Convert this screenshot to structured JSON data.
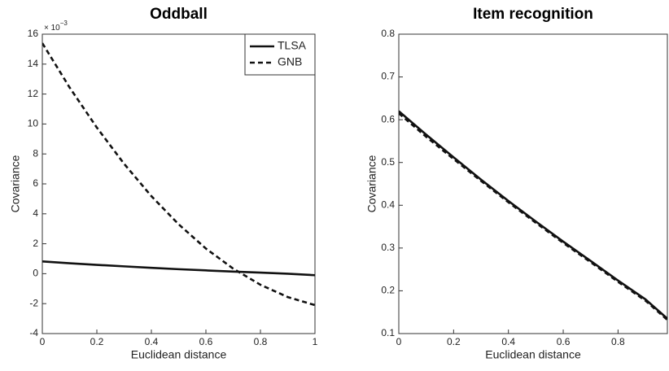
{
  "chart_data": [
    {
      "type": "line",
      "title": "Oddball",
      "xlabel": "Euclidean distance",
      "ylabel": "Covariance",
      "multiplier": {
        "base": "× 10",
        "exponent": "−3"
      },
      "x": [
        0,
        0.1,
        0.2,
        0.3,
        0.4,
        0.5,
        0.6,
        0.7,
        0.8,
        0.9,
        1.0
      ],
      "series": [
        {
          "name": "TLSA",
          "color": "#111111",
          "linestyle": "solid",
          "values": [
            0.82,
            0.7,
            0.59,
            0.49,
            0.39,
            0.3,
            0.22,
            0.14,
            0.07,
            0.0,
            -0.1
          ]
        },
        {
          "name": "GNB",
          "color": "#111111",
          "linestyle": "dashed",
          "values": [
            15.4,
            12.44,
            9.76,
            7.34,
            5.18,
            3.3,
            1.68,
            0.34,
            -0.74,
            -1.56,
            -2.1
          ]
        }
      ],
      "xlim": [
        0,
        1
      ],
      "xticks": [
        0,
        0.2,
        0.4,
        0.6,
        0.8,
        1
      ],
      "ylim": [
        -4,
        16
      ],
      "yticks": [
        -4,
        -2,
        0,
        2,
        4,
        6,
        8,
        10,
        12,
        14,
        16
      ],
      "legend": "upper right"
    },
    {
      "type": "line",
      "title": "Item recognition",
      "xlabel": "Euclidean distance",
      "ylabel": "Covariance",
      "x": [
        0,
        0.1,
        0.2,
        0.3,
        0.4,
        0.5,
        0.6,
        0.7,
        0.8,
        0.9,
        0.98
      ],
      "series": [
        {
          "color": "#111111",
          "linestyle": "solid",
          "values": [
            0.62,
            0.565,
            0.512,
            0.46,
            0.41,
            0.362,
            0.315,
            0.27,
            0.224,
            0.18,
            0.135
          ]
        },
        {
          "color": "#111111",
          "linestyle": "dashed",
          "values": [
            0.615,
            0.56,
            0.508,
            0.457,
            0.407,
            0.359,
            0.312,
            0.267,
            0.221,
            0.177,
            0.132
          ]
        }
      ],
      "xlim": [
        0,
        0.98
      ],
      "xticks": [
        0,
        0.2,
        0.4,
        0.6,
        0.8
      ],
      "ylim": [
        0.1,
        0.8
      ],
      "yticks": [
        0.1,
        0.2,
        0.3,
        0.4,
        0.5,
        0.6,
        0.7,
        0.8
      ]
    }
  ]
}
